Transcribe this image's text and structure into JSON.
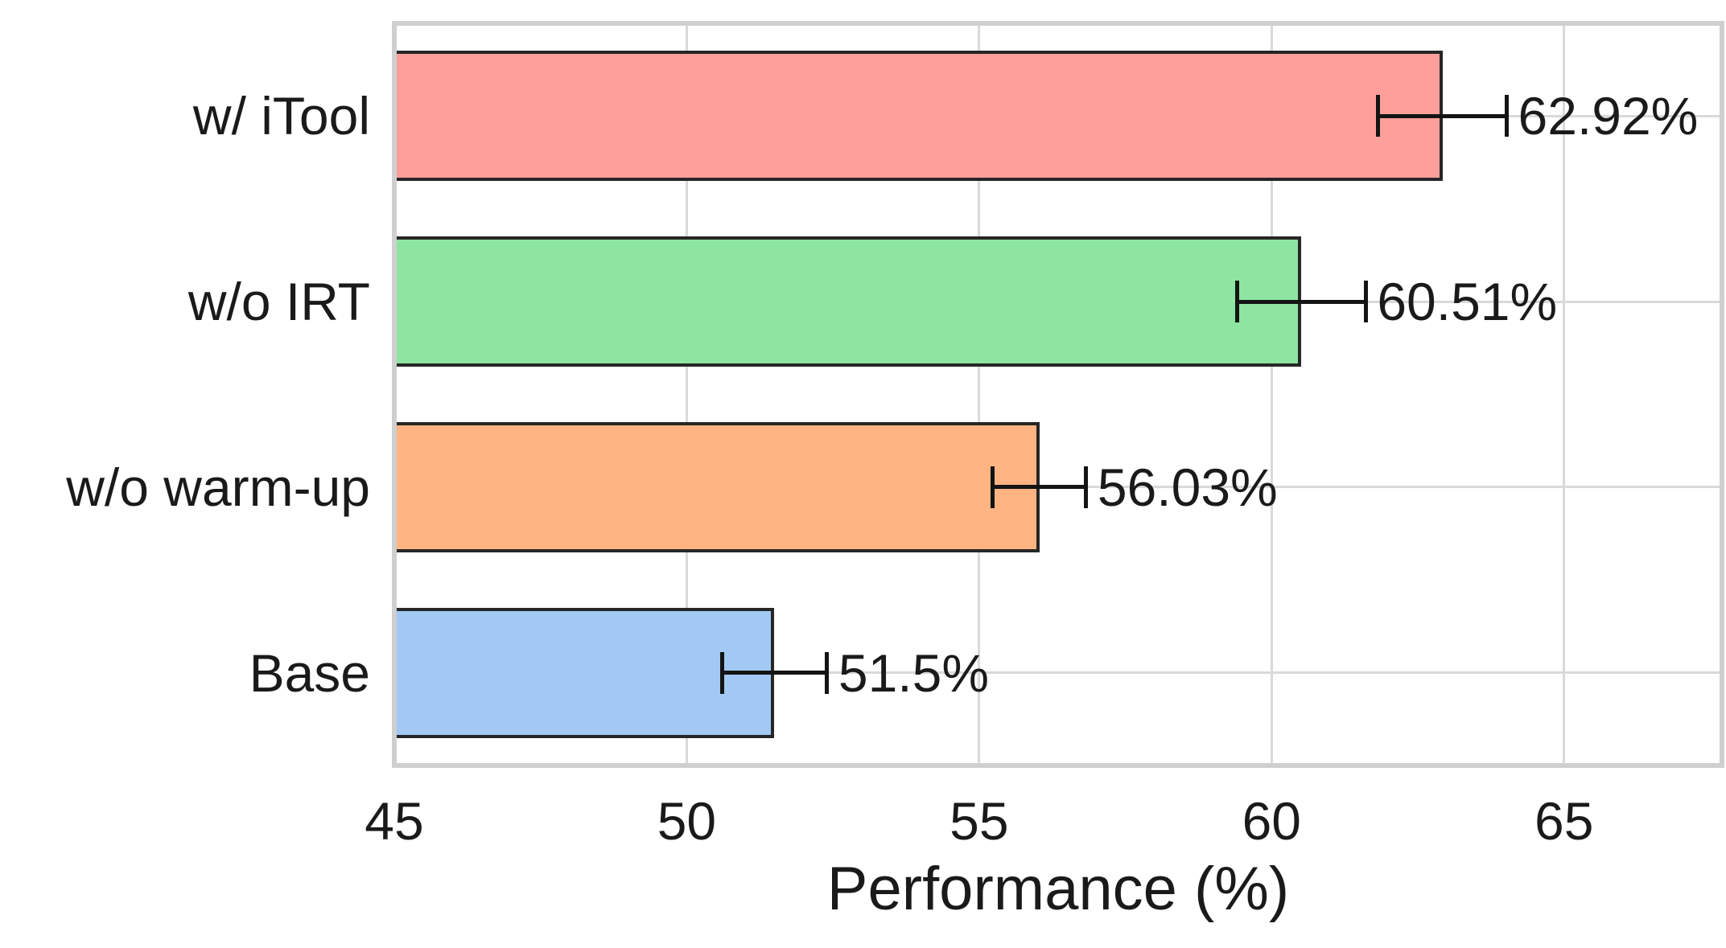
{
  "chart_data": {
    "type": "bar",
    "orientation": "horizontal",
    "title": "",
    "xlabel": "Performance (%)",
    "ylabel": "",
    "categories": [
      "w/ iTool",
      "w/o IRT",
      "w/o warm-up",
      "Base"
    ],
    "values": [
      62.92,
      60.51,
      56.03,
      51.5
    ],
    "errors": [
      1.1,
      1.1,
      0.8,
      0.9
    ],
    "value_labels": [
      "62.92%",
      "60.51%",
      "56.03%",
      "51.5%"
    ],
    "bar_colors": [
      "#ff9f9b",
      "#8de5a1",
      "#ffb482",
      "#a1c9f4"
    ],
    "bar_edge_color": "#262626",
    "error_bar_color": "#141414",
    "xlim": [
      45,
      67.7
    ],
    "xticks": [
      45,
      50,
      55,
      60,
      65
    ],
    "xtick_labels": [
      "45",
      "50",
      "55",
      "60",
      "65"
    ],
    "grid": true,
    "grid_color": "#d9d9d9",
    "frame_color": "#cfcfcf",
    "legend": null
  }
}
